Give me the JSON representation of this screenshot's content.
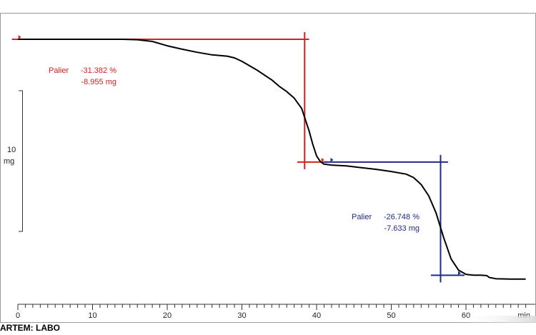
{
  "chart_data": {
    "type": "line",
    "x_unit": "min",
    "x_ticks": [
      0,
      10,
      20,
      30,
      40,
      50,
      60
    ],
    "xlim": [
      0,
      68
    ],
    "scale_bar": {
      "value": "10",
      "unit": "mg"
    },
    "series": [
      {
        "color": "#000000",
        "points": [
          [
            0,
            0.0
          ],
          [
            8,
            0.0
          ],
          [
            14,
            0.0
          ],
          [
            16,
            -0.05
          ],
          [
            18,
            -0.25
          ],
          [
            20,
            -0.75
          ],
          [
            22,
            -1.15
          ],
          [
            24,
            -1.5
          ],
          [
            26,
            -1.8
          ],
          [
            28,
            -1.95
          ],
          [
            29,
            -2.15
          ],
          [
            30,
            -2.55
          ],
          [
            32,
            -3.55
          ],
          [
            34,
            -4.7
          ],
          [
            35,
            -5.45
          ],
          [
            36,
            -6.05
          ],
          [
            37,
            -6.8
          ],
          [
            38,
            -8.0
          ],
          [
            39,
            -10.6
          ],
          [
            39.5,
            -12.2
          ],
          [
            40,
            -13.5
          ],
          [
            40.5,
            -14.15
          ],
          [
            41,
            -14.45
          ],
          [
            42,
            -14.55
          ],
          [
            44,
            -14.65
          ],
          [
            46,
            -14.85
          ],
          [
            48,
            -15.05
          ],
          [
            50,
            -15.3
          ],
          [
            52,
            -15.6
          ],
          [
            53,
            -16.0
          ],
          [
            54,
            -16.8
          ],
          [
            55,
            -18.1
          ],
          [
            56,
            -20.1
          ],
          [
            57,
            -22.9
          ],
          [
            58,
            -25.4
          ],
          [
            59,
            -26.7
          ],
          [
            60,
            -27.2
          ],
          [
            61,
            -27.3
          ],
          [
            62,
            -27.3
          ],
          [
            62.8,
            -27.35
          ],
          [
            63.1,
            -27.55
          ],
          [
            64,
            -27.7
          ],
          [
            66,
            -27.75
          ],
          [
            68,
            -27.75
          ]
        ]
      }
    ],
    "annotations": [
      {
        "color": "#d42020",
        "label": "Palier",
        "percent": "-31.382 %",
        "mass": "-8.955 mg",
        "upper_level": 0.0,
        "lower_level": -14.2,
        "x_cross": 38.4,
        "x_start": -0.8,
        "x_end": 39.0,
        "lower_x_start": 37.4,
        "lower_x_end": 41.5
      },
      {
        "color": "#1f2a8a",
        "label": "Palier",
        "percent": "-26.748 %",
        "mass": "-7.633 mg",
        "upper_level": -14.2,
        "lower_level": -27.3,
        "x_cross": 56.6,
        "x_start": 41.0,
        "x_end": 57.6,
        "lower_x_start": 55.3,
        "lower_x_end": 59.8
      }
    ]
  },
  "footer": {
    "text": "ARTEM: LABO"
  }
}
